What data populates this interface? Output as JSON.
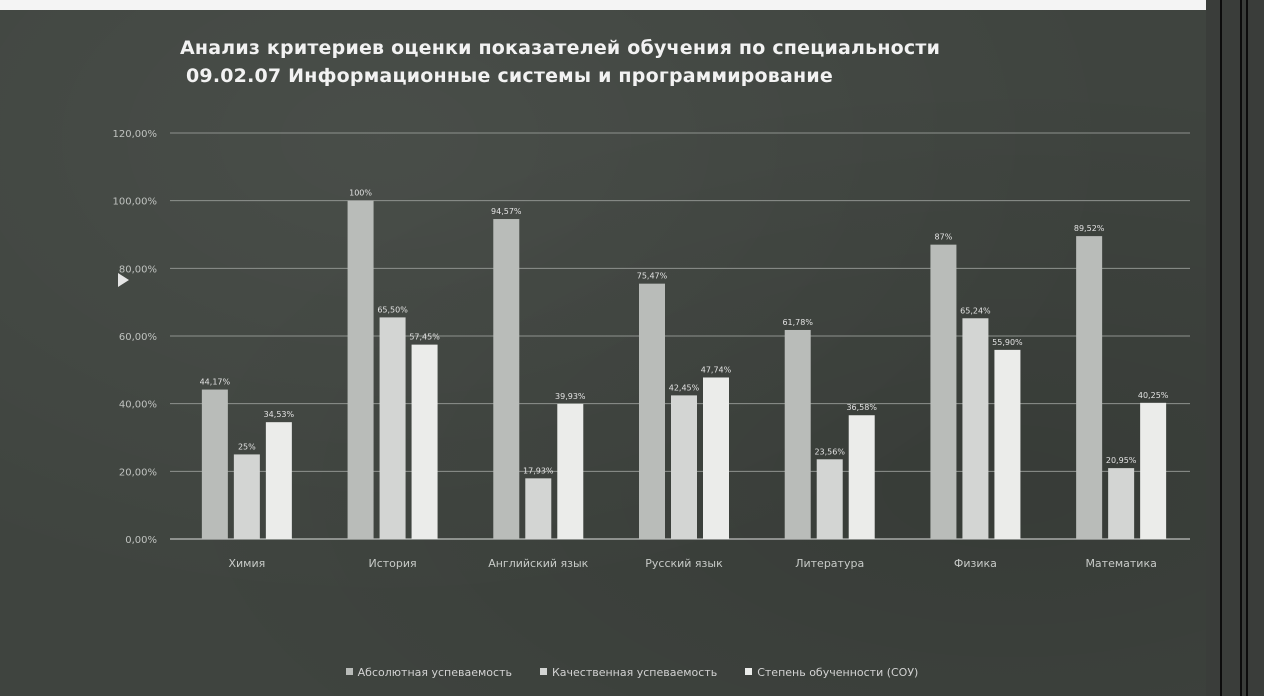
{
  "title_line1": "Анализ критериев оценки показателей обучения по специальности",
  "title_line2": "09.02.07 Информационные системы и программирование",
  "chart_data": {
    "type": "bar",
    "categories": [
      "Химия",
      "История",
      "Английский язык",
      "Русский язык",
      "Литература",
      "Физика",
      "Математика"
    ],
    "series": [
      {
        "name": "Абсолютная успеваемость",
        "values": [
          44.17,
          100,
          94.57,
          75.47,
          61.78,
          87,
          89.52
        ],
        "labels": [
          "44,17%",
          "100%",
          "94,57%",
          "75,47%",
          "61,78%",
          "87%",
          "89,52%"
        ],
        "color": "#b9bcb9"
      },
      {
        "name": "Качественная успеваемость",
        "values": [
          25,
          65.5,
          17.93,
          42.45,
          23.56,
          65.24,
          20.95
        ],
        "labels": [
          "25%",
          "65,50%",
          "17,93%",
          "42,45%",
          "23,56%",
          "65,24%",
          "20,95%"
        ],
        "color": "#d3d5d3"
      },
      {
        "name": "Степень обученности (СОУ)",
        "values": [
          34.53,
          57.45,
          39.93,
          47.74,
          36.58,
          55.9,
          40.25
        ],
        "labels": [
          "34,53%",
          "57,45%",
          "39,93%",
          "47,74%",
          "36,58%",
          "55,90%",
          "40,25%"
        ],
        "color": "#ebecea"
      }
    ],
    "ylim": [
      0,
      120
    ],
    "yticks": [
      "0,00%",
      "20,00%",
      "40,00%",
      "60,00%",
      "80,00%",
      "100,00%",
      "120,00%"
    ],
    "grid": true,
    "legend_position": "bottom"
  }
}
